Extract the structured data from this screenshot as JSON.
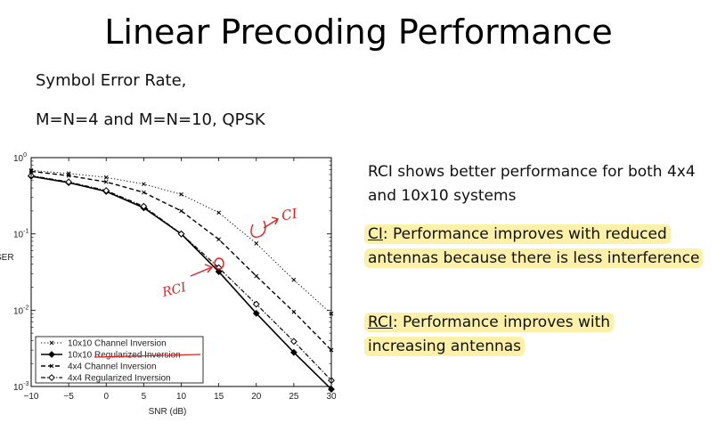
{
  "title": "Linear Precoding Performance",
  "subtitle_line1": "Symbol Error Rate,",
  "subtitle_line2": "M=N=4 and M=N=10, QPSK",
  "notes": {
    "summary": "RCI shows better performance for both 4x4 and 10x10 systems",
    "ci_label": "CI",
    "ci_text": ": Performance improves with reduced antennas because there is less interference",
    "rci_label": "RCI",
    "rci_text": ": Performance improves with increasing antennas"
  },
  "annotations": {
    "ci": "CI",
    "rci": "RCI"
  },
  "chart_data": {
    "type": "line",
    "xlabel": "SNR (dB)",
    "ylabel": "SER",
    "xlim": [
      -10,
      30
    ],
    "ylim": [
      0.001,
      1
    ],
    "yscale": "log",
    "grid": false,
    "legend_position": "bottom-left",
    "x_ticks": [
      "−10",
      "−5",
      "0",
      "5",
      "10",
      "15",
      "20",
      "25",
      "30"
    ],
    "y_ticks": [
      "10^0",
      "10^-1",
      "10^-2",
      "10^-3"
    ],
    "x": [
      -10,
      -5,
      0,
      5,
      10,
      15,
      20,
      25,
      30
    ],
    "series": [
      {
        "name": "10x10 Channel Inversion",
        "style": "dotted",
        "marker": "x",
        "values": [
          0.68,
          0.62,
          0.55,
          0.45,
          0.33,
          0.19,
          0.075,
          0.025,
          0.009
        ]
      },
      {
        "name": "10x10 Regularized Inversion",
        "style": "solid",
        "marker": "filled-diamond",
        "values": [
          0.57,
          0.47,
          0.36,
          0.22,
          0.1,
          0.032,
          0.0091,
          0.0028,
          0.00092
        ]
      },
      {
        "name": "4x4 Channel Inversion",
        "style": "dashed",
        "marker": "x",
        "values": [
          0.66,
          0.58,
          0.48,
          0.35,
          0.2,
          0.085,
          0.028,
          0.0095,
          0.003
        ]
      },
      {
        "name": "4x4 Regularized Inversion",
        "style": "dashdot",
        "marker": "open-diamond",
        "values": [
          0.58,
          0.48,
          0.37,
          0.23,
          0.1,
          0.036,
          0.012,
          0.0039,
          0.0012
        ]
      }
    ]
  }
}
